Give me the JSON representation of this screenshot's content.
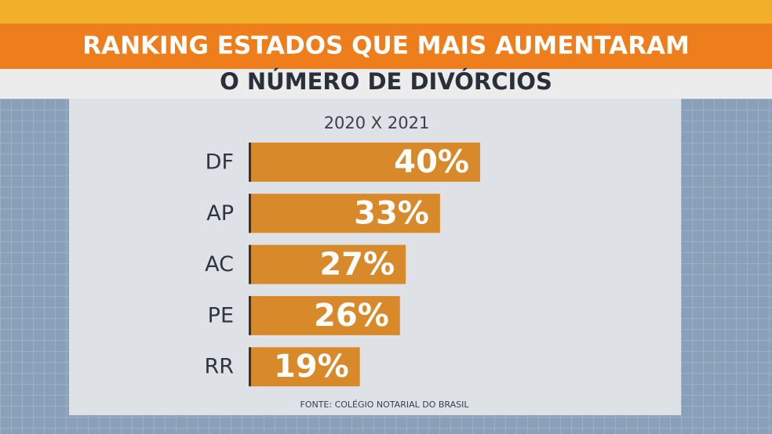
{
  "chart_data": {
    "type": "bar",
    "orientation": "horizontal",
    "title": "RANKING ESTADOS QUE MAIS AUMENTARAM",
    "subtitle": "O NÚMERO DE DIVÓRCIOS",
    "period": "2020 X 2021",
    "source": "FONTE: COLÉGIO NOTARIAL DO BRASIL",
    "categories": [
      "DF",
      "AP",
      "AC",
      "PE",
      "RR"
    ],
    "values": [
      40,
      33,
      27,
      26,
      19
    ],
    "value_labels": [
      "40%",
      "33%",
      "27%",
      "26%",
      "19%"
    ],
    "color": "#d88a2b"
  }
}
